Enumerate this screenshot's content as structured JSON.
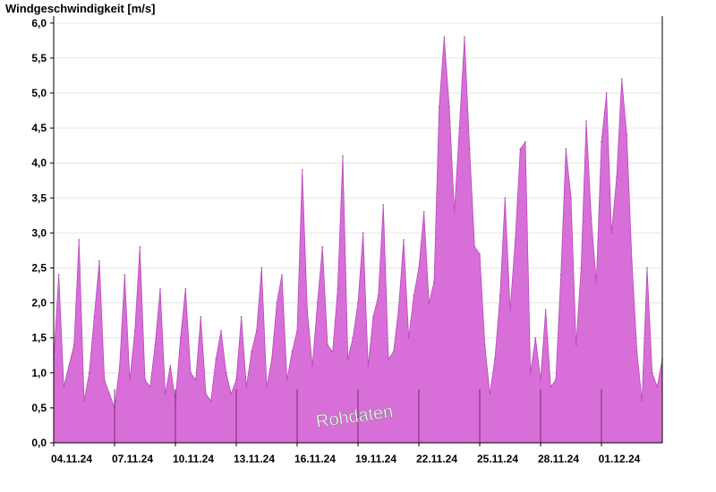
{
  "chart_data": {
    "type": "area",
    "title": "Windgeschwindigkeit [m/s]",
    "xlabel": "",
    "ylabel": "",
    "ylim": [
      0,
      6.1
    ],
    "yticks": [
      0,
      0.5,
      1.0,
      1.5,
      2.0,
      2.5,
      3.0,
      3.5,
      4.0,
      4.5,
      5.0,
      5.5,
      6.0
    ],
    "ytick_labels": [
      "0,0",
      "0,5",
      "1,0",
      "1,5",
      "2,0",
      "2,5",
      "3,0",
      "3,5",
      "4,0",
      "4,5",
      "5,0",
      "5,5",
      "6,0"
    ],
    "xlim": [
      "2024-11-04",
      "2024-12-04"
    ],
    "xticks": [
      "2024-11-04",
      "2024-11-07",
      "2024-11-10",
      "2024-11-13",
      "2024-11-16",
      "2024-11-19",
      "2024-11-22",
      "2024-11-25",
      "2024-11-28",
      "2024-12-01"
    ],
    "xtick_labels": [
      "04.11.24",
      "07.11.24",
      "10.11.24",
      "13.11.24",
      "16.11.24",
      "19.11.24",
      "22.11.24",
      "25.11.24",
      "28.11.24",
      "01.12.24"
    ],
    "grid": true,
    "annotation": "Rohdaten",
    "colors": {
      "fill": "#d86ed8",
      "stroke": "#b84ab8",
      "day_marker": "#7a2a7a",
      "grid": "#e6e6e6"
    },
    "series": [
      {
        "x": [
          "2024-11-04 00:00",
          "2024-11-04 06:00",
          "2024-11-04 12:00",
          "2024-11-04 18:00",
          "2024-11-05 00:00",
          "2024-11-05 06:00",
          "2024-11-05 12:00",
          "2024-11-05 18:00",
          "2024-11-06 00:00",
          "2024-11-06 06:00",
          "2024-11-06 12:00",
          "2024-11-06 18:00",
          "2024-11-07 00:00",
          "2024-11-07 06:00",
          "2024-11-07 12:00",
          "2024-11-07 18:00",
          "2024-11-08 00:00",
          "2024-11-08 06:00",
          "2024-11-08 12:00",
          "2024-11-08 18:00",
          "2024-11-09 00:00",
          "2024-11-09 06:00",
          "2024-11-09 12:00",
          "2024-11-09 18:00",
          "2024-11-10 00:00",
          "2024-11-10 06:00",
          "2024-11-10 12:00",
          "2024-11-10 18:00",
          "2024-11-11 00:00",
          "2024-11-11 06:00",
          "2024-11-11 12:00",
          "2024-11-11 18:00",
          "2024-11-12 00:00",
          "2024-11-12 06:00",
          "2024-11-12 12:00",
          "2024-11-12 18:00",
          "2024-11-13 00:00",
          "2024-11-13 06:00",
          "2024-11-13 12:00",
          "2024-11-13 18:00",
          "2024-11-14 00:00",
          "2024-11-14 06:00",
          "2024-11-14 12:00",
          "2024-11-14 18:00",
          "2024-11-15 00:00",
          "2024-11-15 06:00",
          "2024-11-15 12:00",
          "2024-11-15 18:00",
          "2024-11-16 00:00",
          "2024-11-16 06:00",
          "2024-11-16 12:00",
          "2024-11-16 18:00",
          "2024-11-17 00:00",
          "2024-11-17 06:00",
          "2024-11-17 12:00",
          "2024-11-17 18:00",
          "2024-11-18 00:00",
          "2024-11-18 06:00",
          "2024-11-18 12:00",
          "2024-11-18 18:00",
          "2024-11-19 00:00",
          "2024-11-19 06:00",
          "2024-11-19 12:00",
          "2024-11-19 18:00",
          "2024-11-20 00:00",
          "2024-11-20 06:00",
          "2024-11-20 12:00",
          "2024-11-20 18:00",
          "2024-11-21 00:00",
          "2024-11-21 06:00",
          "2024-11-21 12:00",
          "2024-11-21 18:00",
          "2024-11-22 00:00",
          "2024-11-22 06:00",
          "2024-11-22 12:00",
          "2024-11-22 18:00",
          "2024-11-23 00:00",
          "2024-11-23 06:00",
          "2024-11-23 12:00",
          "2024-11-23 18:00",
          "2024-11-24 00:00",
          "2024-11-24 06:00",
          "2024-11-24 12:00",
          "2024-11-24 18:00",
          "2024-11-25 00:00",
          "2024-11-25 06:00",
          "2024-11-25 12:00",
          "2024-11-25 18:00",
          "2024-11-26 00:00",
          "2024-11-26 06:00",
          "2024-11-26 12:00",
          "2024-11-26 18:00",
          "2024-11-27 00:00",
          "2024-11-27 06:00",
          "2024-11-27 12:00",
          "2024-11-27 18:00",
          "2024-11-28 00:00",
          "2024-11-28 06:00",
          "2024-11-28 12:00",
          "2024-11-28 18:00",
          "2024-11-29 00:00",
          "2024-11-29 06:00",
          "2024-11-29 12:00",
          "2024-11-29 18:00",
          "2024-11-30 00:00",
          "2024-11-30 06:00",
          "2024-11-30 12:00",
          "2024-11-30 18:00",
          "2024-12-01 00:00",
          "2024-12-01 06:00",
          "2024-12-01 12:00",
          "2024-12-01 18:00",
          "2024-12-02 00:00",
          "2024-12-02 06:00",
          "2024-12-02 12:00",
          "2024-12-02 18:00",
          "2024-12-03 00:00",
          "2024-12-03 06:00",
          "2024-12-03 12:00",
          "2024-12-03 18:00",
          "2024-12-04 00:00"
        ],
        "values": [
          1.2,
          2.4,
          0.8,
          1.1,
          1.4,
          2.9,
          0.6,
          1.0,
          1.8,
          2.6,
          0.9,
          0.7,
          0.5,
          1.1,
          2.4,
          0.9,
          1.6,
          2.8,
          0.9,
          0.8,
          1.4,
          2.2,
          0.7,
          1.1,
          0.6,
          1.5,
          2.2,
          1.0,
          0.9,
          1.8,
          0.7,
          0.6,
          1.2,
          1.6,
          1.0,
          0.7,
          0.9,
          1.8,
          0.8,
          1.3,
          1.6,
          2.5,
          0.8,
          1.2,
          2.0,
          2.4,
          0.9,
          1.3,
          1.6,
          3.9,
          1.9,
          1.1,
          2.0,
          2.8,
          1.4,
          1.3,
          2.2,
          4.1,
          1.2,
          1.5,
          2.0,
          3.0,
          1.1,
          1.8,
          2.1,
          3.4,
          1.2,
          1.3,
          1.9,
          2.9,
          1.5,
          2.1,
          2.5,
          3.3,
          2.0,
          2.3,
          4.8,
          5.8,
          4.8,
          3.3,
          4.5,
          5.8,
          4.2,
          2.8,
          2.7,
          1.4,
          0.7,
          1.2,
          2.1,
          3.5,
          1.9,
          2.9,
          4.2,
          4.3,
          1.0,
          1.5,
          0.9,
          1.9,
          0.8,
          0.9,
          2.4,
          4.2,
          3.5,
          1.4,
          2.5,
          4.6,
          3.2,
          2.3,
          4.3,
          5.0,
          3.0,
          3.8,
          5.2,
          4.4,
          2.6,
          1.3,
          0.6,
          2.5,
          1.0,
          0.8,
          1.2
        ]
      }
    ]
  }
}
